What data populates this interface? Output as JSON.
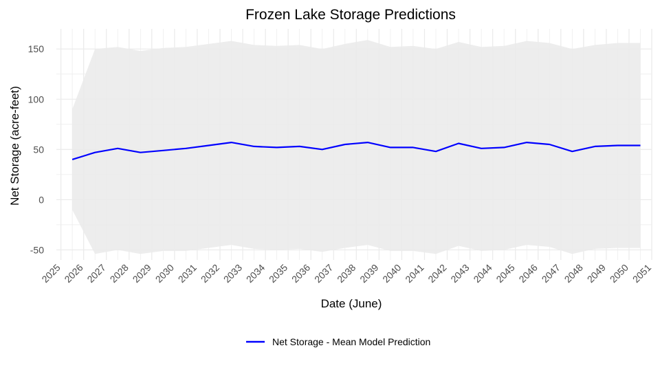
{
  "chart_data": {
    "type": "line",
    "title": "Frozen Lake Storage Predictions",
    "xlabel": "Date (June)",
    "ylabel": "Net Storage (acre-feet)",
    "xlim": [
      2024.8,
      2051.0
    ],
    "ylim": [
      -60,
      170
    ],
    "x_ticks": [
      2025,
      2026,
      2027,
      2028,
      2029,
      2030,
      2031,
      2032,
      2033,
      2034,
      2035,
      2036,
      2037,
      2038,
      2039,
      2040,
      2041,
      2042,
      2043,
      2044,
      2045,
      2046,
      2047,
      2048,
      2049,
      2050,
      2051
    ],
    "y_ticks": [
      -50,
      0,
      50,
      100,
      150
    ],
    "grid": true,
    "legend_position": "bottom",
    "colors": {
      "line": "#0000ff",
      "band": "#ebebeb",
      "grid": "#ebebeb"
    },
    "x": [
      2025.5,
      2026.5,
      2027.5,
      2028.5,
      2029.5,
      2030.5,
      2031.5,
      2032.5,
      2033.5,
      2034.5,
      2035.5,
      2036.5,
      2037.5,
      2038.5,
      2039.5,
      2040.5,
      2041.5,
      2042.5,
      2043.5,
      2044.5,
      2045.5,
      2046.5,
      2047.5,
      2048.5,
      2049.5,
      2050.5
    ],
    "series": [
      {
        "name": "Net Storage - Mean Model Prediction",
        "values": [
          40,
          47,
          51,
          47,
          49,
          51,
          54,
          57,
          53,
          52,
          53,
          50,
          55,
          57,
          52,
          52,
          48,
          56,
          51,
          52,
          57,
          55,
          48,
          53,
          54,
          54
        ],
        "upper": [
          90,
          150,
          152,
          148,
          151,
          152,
          155,
          158,
          154,
          153,
          154,
          150,
          155,
          159,
          152,
          153,
          150,
          157,
          152,
          153,
          158,
          156,
          150,
          154,
          156,
          156
        ],
        "lower": [
          -10,
          -54,
          -50,
          -54,
          -51,
          -51,
          -48,
          -45,
          -49,
          -50,
          -49,
          -52,
          -48,
          -45,
          -51,
          -51,
          -54,
          -46,
          -51,
          -50,
          -45,
          -47,
          -54,
          -49,
          -48,
          -48
        ]
      }
    ]
  }
}
